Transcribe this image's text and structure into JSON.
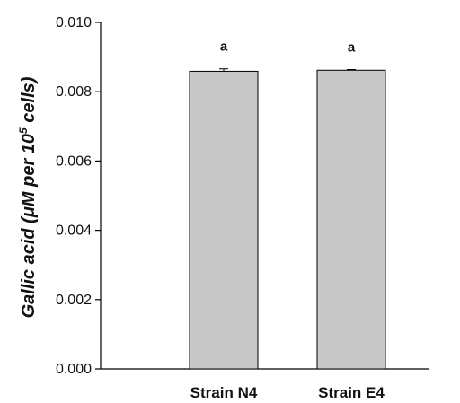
{
  "chart_data": {
    "type": "bar",
    "categories": [
      "Strain N4",
      "Strain E4"
    ],
    "values": [
      0.00859,
      0.00862
    ],
    "errors": [
      7e-05,
      2e-05
    ],
    "significance": [
      "a",
      "a"
    ],
    "ylabel": {
      "prefix": "Gallic acid  (μM  per 10",
      "superscript": "5",
      "suffix": " cells)"
    },
    "ylim": [
      0,
      0.01
    ],
    "yticks": [
      "0.000",
      "0.002",
      "0.004",
      "0.006",
      "0.008",
      "0.010"
    ],
    "grid": false,
    "colors": {
      "bar_fill": "#c8c8c8",
      "bar_stroke": "#000000",
      "axis": "#000000"
    }
  }
}
